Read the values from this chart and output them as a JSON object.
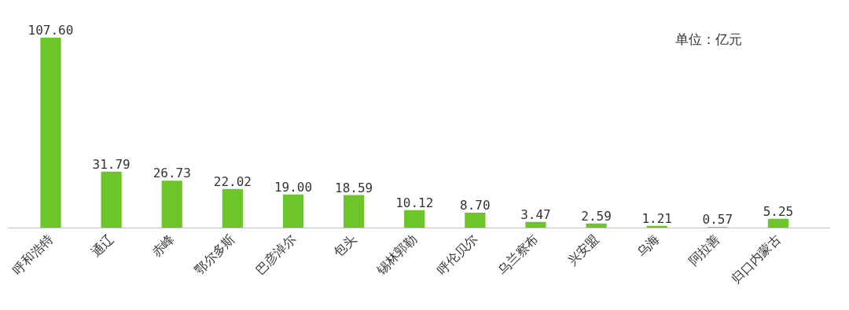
{
  "chart_data": {
    "type": "bar",
    "categories": [
      "呼和浩特",
      "通辽",
      "赤峰",
      "鄂尔多斯",
      "巴彦淖尔",
      "包头",
      "锡林郭勒",
      "呼伦贝尔",
      "乌兰察布",
      "兴安盟",
      "乌海",
      "阿拉善",
      "归口内蒙古"
    ],
    "values": [
      107.6,
      31.79,
      26.73,
      22.02,
      19.0,
      18.59,
      10.12,
      8.7,
      3.47,
      2.59,
      1.21,
      0.57,
      5.25
    ],
    "value_labels": [
      "107.60",
      "31.79",
      "26.73",
      "22.02",
      "19.00",
      "18.59",
      "10.12",
      "8.70",
      "3.47",
      "2.59",
      "1.21",
      "0.57",
      "5.25"
    ],
    "color": "#6cc62a",
    "annotations": [
      "单位：亿元"
    ],
    "grid": false
  }
}
